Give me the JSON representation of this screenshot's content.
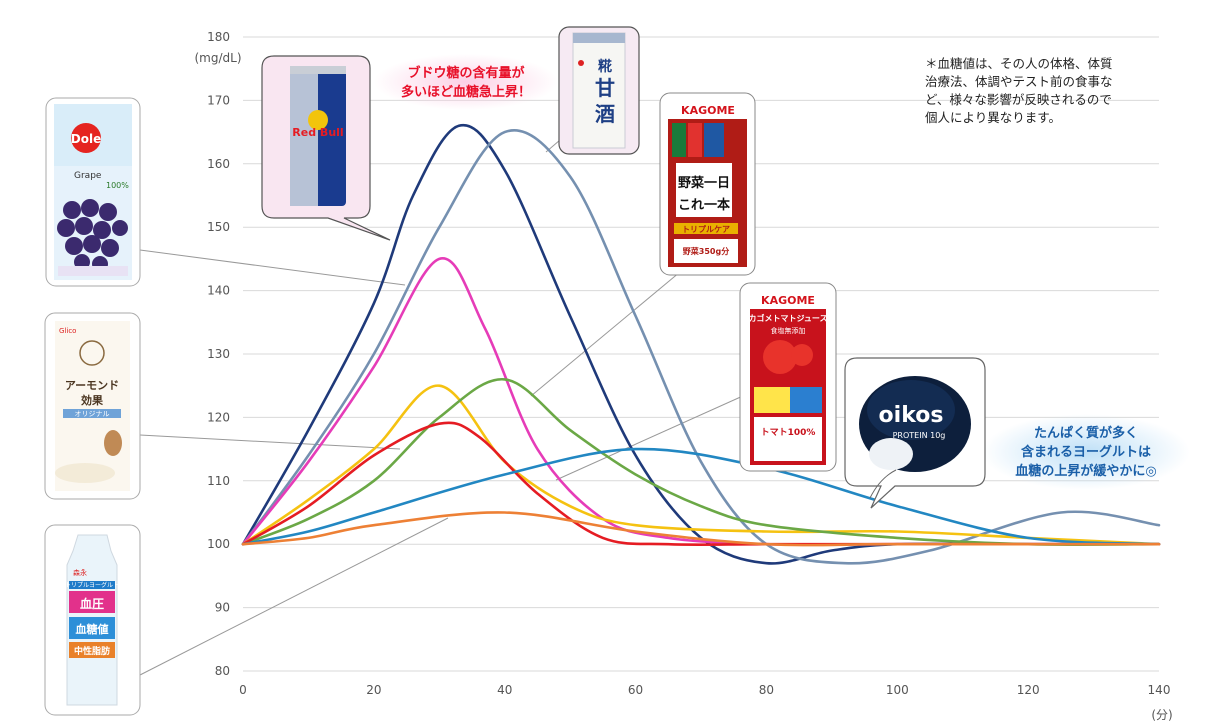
{
  "chart_data": {
    "type": "line",
    "ylabel": "(mg/dL)",
    "xunit": "(分)",
    "xlim": [
      0,
      140
    ],
    "ylim": [
      80,
      180
    ],
    "xticks": [
      0,
      20,
      40,
      60,
      80,
      100,
      120,
      140
    ],
    "yticks": [
      80,
      90,
      100,
      110,
      120,
      130,
      140,
      150,
      160,
      170,
      180
    ],
    "grid": "horizontal",
    "series": [
      {
        "color": "#1f3a7a",
        "points": [
          [
            0,
            100
          ],
          [
            10,
            118
          ],
          [
            20,
            138
          ],
          [
            26,
            155
          ],
          [
            33,
            166
          ],
          [
            40,
            159
          ],
          [
            50,
            136
          ],
          [
            60,
            114
          ],
          [
            70,
            101
          ],
          [
            80,
            97
          ],
          [
            90,
            99
          ],
          [
            100,
            100
          ],
          [
            120,
            100
          ],
          [
            140,
            100
          ]
        ]
      },
      {
        "color": "#7590b0",
        "points": [
          [
            0,
            100
          ],
          [
            10,
            114
          ],
          [
            20,
            130
          ],
          [
            30,
            150
          ],
          [
            40,
            165
          ],
          [
            50,
            158
          ],
          [
            60,
            136
          ],
          [
            70,
            113
          ],
          [
            80,
            100
          ],
          [
            92,
            97
          ],
          [
            105,
            99
          ],
          [
            125,
            105
          ],
          [
            140,
            103
          ]
        ]
      },
      {
        "color": "#e63cb8",
        "points": [
          [
            0,
            100
          ],
          [
            10,
            113
          ],
          [
            20,
            128
          ],
          [
            30,
            145
          ],
          [
            37,
            134
          ],
          [
            45,
            115
          ],
          [
            55,
            104
          ],
          [
            65,
            101
          ],
          [
            80,
            100
          ],
          [
            100,
            100
          ],
          [
            140,
            100
          ]
        ]
      },
      {
        "color": "#f5c211",
        "points": [
          [
            0,
            100
          ],
          [
            10,
            107
          ],
          [
            20,
            115
          ],
          [
            30,
            125
          ],
          [
            40,
            113
          ],
          [
            50,
            106
          ],
          [
            60,
            103
          ],
          [
            80,
            102
          ],
          [
            100,
            102
          ],
          [
            120,
            101
          ],
          [
            140,
            100
          ]
        ]
      },
      {
        "color": "#6ba846",
        "points": [
          [
            0,
            100
          ],
          [
            10,
            104
          ],
          [
            20,
            110
          ],
          [
            30,
            120
          ],
          [
            40,
            126
          ],
          [
            50,
            118
          ],
          [
            60,
            111
          ],
          [
            70,
            106
          ],
          [
            80,
            103
          ],
          [
            100,
            101
          ],
          [
            120,
            100
          ],
          [
            140,
            100
          ]
        ]
      },
      {
        "color": "#e51c23",
        "points": [
          [
            0,
            100
          ],
          [
            10,
            106
          ],
          [
            20,
            114
          ],
          [
            30,
            119
          ],
          [
            36,
            117
          ],
          [
            45,
            108
          ],
          [
            55,
            101
          ],
          [
            65,
            100
          ],
          [
            80,
            100
          ],
          [
            100,
            100
          ],
          [
            140,
            100
          ]
        ]
      },
      {
        "color": "#2287c2",
        "points": [
          [
            0,
            100
          ],
          [
            10,
            102
          ],
          [
            20,
            105
          ],
          [
            40,
            111
          ],
          [
            60,
            115
          ],
          [
            80,
            112
          ],
          [
            100,
            106
          ],
          [
            120,
            101
          ],
          [
            140,
            100
          ]
        ]
      },
      {
        "color": "#ed8035",
        "points": [
          [
            0,
            100
          ],
          [
            10,
            101
          ],
          [
            20,
            103
          ],
          [
            40,
            105
          ],
          [
            60,
            102
          ],
          [
            80,
            100
          ],
          [
            100,
            100
          ],
          [
            140,
            100
          ]
        ]
      }
    ],
    "annotations": {
      "glucose_note": [
        "ブドウ糖の含有量が",
        "多いほど血糖急上昇！"
      ],
      "protein_note": [
        "たんぱく質が多く",
        "含まれるヨーグルトは",
        "血糖の上昇が緩やかに◎"
      ],
      "disclaimer": [
        "＊血糖値は、その人の体格、体質",
        "治療法、体調やテスト前の食事な",
        "ど、様々な影響が反映されるので",
        "個人により異なります。"
      ]
    }
  },
  "products": {
    "dole": {
      "brand": "Dole",
      "flavor": "Grape",
      "percent": "100%"
    },
    "almond": {
      "name_1": "アーモンド",
      "name_2": "効果",
      "sub": "オリジナル",
      "brand": "Glico"
    },
    "yogurt": {
      "brand": "森永",
      "title": "トリプルヨーグルト",
      "l1": "血圧",
      "l2": "血糖値",
      "l3": "中性脂肪"
    },
    "redbull": {
      "name": "Red Bull"
    },
    "amazake": {
      "name_1": "糀",
      "name_2": "甘",
      "name_3": "酒"
    },
    "yasai": {
      "brand": "KAGOME",
      "title_1": "野菜一日",
      "title_2": "これ一本",
      "sub": "トリプルケア",
      "amount": "野菜350g分"
    },
    "tomato": {
      "brand": "KAGOME",
      "title": "カゴメトマトジュース",
      "sub": "食塩無添加",
      "label": "トマト100%"
    },
    "oikos": {
      "brand": "oikos",
      "protein": "PROTEIN 10g"
    }
  }
}
